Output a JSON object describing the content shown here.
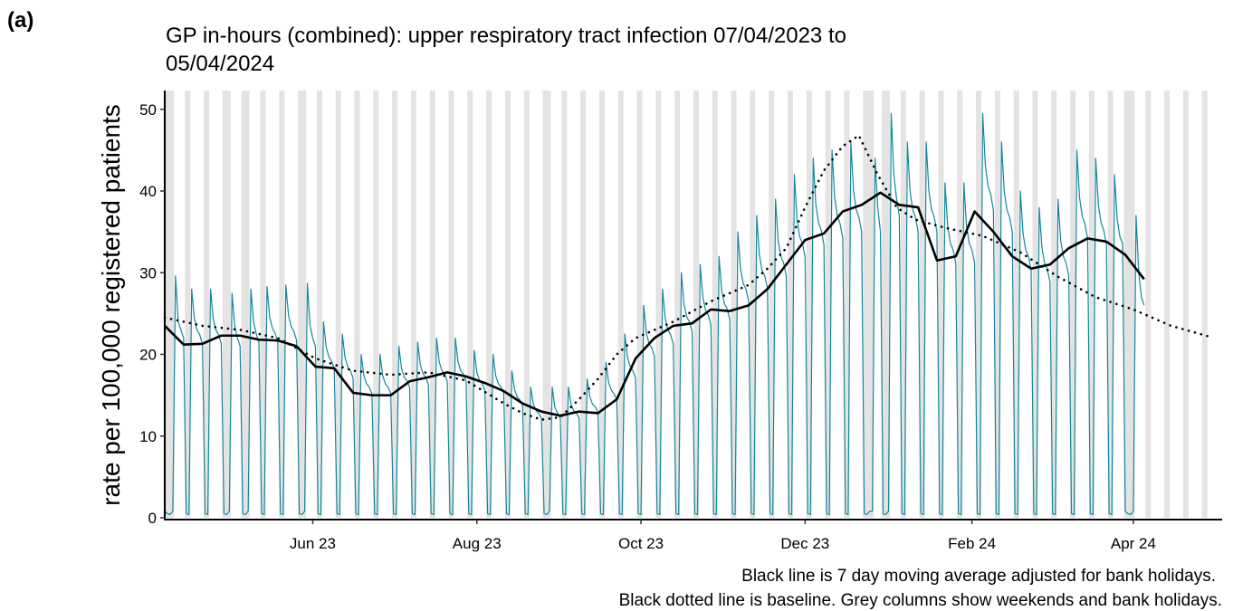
{
  "chart_data": {
    "type": "line",
    "panel_label": "(a)",
    "title": [
      "GP in-hours (combined): upper respiratory tract infection 07/04/2023 to",
      "05/04/2024"
    ],
    "ylabel": "rate per 100,000 registered patients",
    "notes": [
      "Black line is 7 day moving average adjusted for bank holidays.",
      "Black dotted line is baseline. Grey columns show weekends and bank holidays."
    ],
    "xlim": [
      0,
      393
    ],
    "ylim": [
      0,
      52.3
    ],
    "xticks": [
      {
        "value": 55,
        "label": "Jun 23"
      },
      {
        "value": 116,
        "label": "Aug 23"
      },
      {
        "value": 177,
        "label": "Oct 23"
      },
      {
        "value": 238,
        "label": "Dec 23"
      },
      {
        "value": 300,
        "label": "Feb 24"
      },
      {
        "value": 360,
        "label": "Apr 24"
      }
    ],
    "yticks": [
      0,
      10,
      20,
      30,
      40,
      50
    ],
    "shaded_color": "#e3e3e3",
    "shaded": [
      0,
      1,
      2,
      3,
      8,
      9,
      15,
      16,
      22,
      23,
      24,
      29,
      30,
      31,
      36,
      37,
      43,
      44,
      50,
      51,
      52,
      57,
      58,
      64,
      65,
      71,
      72,
      78,
      79,
      85,
      86,
      92,
      93,
      99,
      100,
      106,
      107,
      113,
      114,
      120,
      121,
      127,
      128,
      134,
      135,
      141,
      142,
      143,
      148,
      149,
      155,
      156,
      162,
      163,
      169,
      170,
      176,
      177,
      183,
      184,
      190,
      191,
      197,
      198,
      204,
      205,
      211,
      212,
      218,
      219,
      225,
      226,
      232,
      233,
      239,
      240,
      246,
      247,
      253,
      254,
      260,
      261,
      262,
      263,
      267,
      268,
      269,
      274,
      275,
      281,
      282,
      288,
      289,
      295,
      296,
      302,
      303,
      309,
      310,
      316,
      317,
      323,
      324,
      330,
      331,
      337,
      338,
      344,
      345,
      351,
      352,
      357,
      358,
      359,
      360,
      365,
      366,
      372,
      373,
      379,
      380,
      386,
      387
    ],
    "series": [
      {
        "color": "#13869b",
        "style": "solid",
        "width": 1.2,
        "x": [
          0,
          1,
          2,
          3,
          4,
          5,
          6,
          7,
          8,
          9,
          10,
          11,
          12,
          13,
          14,
          15,
          16,
          17,
          18,
          19,
          20,
          21,
          22,
          23,
          24,
          25,
          26,
          27,
          28,
          29,
          30,
          31,
          32,
          33,
          34,
          35,
          36,
          37,
          38,
          39,
          40,
          41,
          42,
          43,
          44,
          45,
          46,
          47,
          48,
          49,
          50,
          51,
          52,
          53,
          54,
          55,
          56,
          57,
          58,
          59,
          60,
          61,
          62,
          63,
          64,
          65,
          66,
          67,
          68,
          69,
          70,
          71,
          72,
          73,
          74,
          75,
          76,
          77,
          78,
          79,
          80,
          81,
          82,
          83,
          84,
          85,
          86,
          87,
          88,
          89,
          90,
          91,
          92,
          93,
          94,
          95,
          96,
          97,
          98,
          99,
          100,
          101,
          102,
          103,
          104,
          105,
          106,
          107,
          108,
          109,
          110,
          111,
          112,
          113,
          114,
          115,
          116,
          117,
          118,
          119,
          120,
          121,
          122,
          123,
          124,
          125,
          126,
          127,
          128,
          129,
          130,
          131,
          132,
          133,
          134,
          135,
          136,
          137,
          138,
          139,
          140,
          141,
          142,
          143,
          144,
          145,
          146,
          147,
          148,
          149,
          150,
          151,
          152,
          153,
          154,
          155,
          156,
          157,
          158,
          159,
          160,
          161,
          162,
          163,
          164,
          165,
          166,
          167,
          168,
          169,
          170,
          171,
          172,
          173,
          174,
          175,
          176,
          177,
          178,
          179,
          180,
          181,
          182,
          183,
          184,
          185,
          186,
          187,
          188,
          189,
          190,
          191,
          192,
          193,
          194,
          195,
          196,
          197,
          198,
          199,
          200,
          201,
          202,
          203,
          204,
          205,
          206,
          207,
          208,
          209,
          210,
          211,
          212,
          213,
          214,
          215,
          216,
          217,
          218,
          219,
          220,
          221,
          222,
          223,
          224,
          225,
          226,
          227,
          228,
          229,
          230,
          231,
          232,
          233,
          234,
          235,
          236,
          237,
          238,
          239,
          240,
          241,
          242,
          243,
          244,
          245,
          246,
          247,
          248,
          249,
          250,
          251,
          252,
          253,
          254,
          255,
          256,
          257,
          258,
          259,
          260,
          261,
          262,
          263,
          264,
          265,
          266,
          267,
          268,
          269,
          270,
          271,
          272,
          273,
          274,
          275,
          276,
          277,
          278,
          279,
          280,
          281,
          282,
          283,
          284,
          285,
          286,
          287,
          288,
          289,
          290,
          291,
          292,
          293,
          294,
          295,
          296,
          297,
          298,
          299,
          300,
          301,
          302,
          303,
          304,
          305,
          306,
          307,
          308,
          309,
          310,
          311,
          312,
          313,
          314,
          315,
          316,
          317,
          318,
          319,
          320,
          321,
          322,
          323,
          324,
          325,
          326,
          327,
          328,
          329,
          330,
          331,
          332,
          333,
          334,
          335,
          336,
          337,
          338,
          339,
          340,
          341,
          342,
          343,
          344,
          345,
          346,
          347,
          348,
          349,
          350,
          351,
          352,
          353,
          354,
          355,
          356,
          357,
          358,
          359,
          360,
          361,
          362,
          363,
          364
        ],
        "values": [
          0.8,
          0.5,
          0.4,
          0.8,
          29.6,
          24,
          23,
          22,
          0.5,
          0.4,
          28,
          24.4,
          23,
          22.4,
          21.3,
          0.5,
          0.4,
          28,
          24.4,
          23,
          22.4,
          21.3,
          0.5,
          0.4,
          0.8,
          27.5,
          23.5,
          22,
          21,
          0.5,
          0.4,
          0.8,
          28,
          24,
          22.5,
          21.5,
          0.5,
          0.4,
          28.3,
          24.6,
          23.2,
          22.6,
          21.5,
          0.5,
          0.4,
          28.5,
          24.8,
          23.4,
          22.8,
          21.7,
          0.5,
          0.4,
          0.8,
          28.7,
          23.5,
          22,
          21,
          0.5,
          0.4,
          24,
          20.9,
          19.7,
          19.2,
          18.2,
          0.5,
          0.4,
          22.5,
          19.6,
          18.5,
          18,
          17.1,
          0.5,
          0.4,
          20,
          17.4,
          16.4,
          16,
          15.2,
          0.5,
          0.4,
          20,
          17.4,
          16.4,
          16,
          15.2,
          0.5,
          0.4,
          21,
          18.3,
          17.2,
          16.8,
          16,
          0.5,
          0.4,
          21.5,
          18.7,
          17.6,
          17.2,
          16.3,
          0.5,
          0.4,
          22,
          19.1,
          18,
          17.6,
          16.7,
          0.5,
          0.4,
          22,
          19.1,
          18,
          17.6,
          16.7,
          0.5,
          0.4,
          20.5,
          17.8,
          16.8,
          16.4,
          15.6,
          0.5,
          0.4,
          20,
          17.4,
          16.4,
          16,
          15.2,
          0.5,
          0.4,
          18,
          15.7,
          14.8,
          14.4,
          13.7,
          0.5,
          0.4,
          16,
          13.9,
          13.1,
          12.8,
          12.2,
          0.5,
          0.4,
          0.8,
          16,
          13.5,
          12.8,
          12.2,
          0.5,
          0.4,
          16,
          13.9,
          13.1,
          12.8,
          12.2,
          0.5,
          0.4,
          17,
          14.8,
          13.9,
          13.6,
          12.9,
          0.5,
          0.4,
          19,
          16.5,
          15.6,
          15.2,
          14.4,
          0.5,
          0.4,
          22.5,
          19.6,
          18.5,
          18,
          17.1,
          0.5,
          0.4,
          26,
          22.6,
          21.3,
          20.8,
          19.8,
          0.5,
          0.4,
          28,
          24.4,
          23,
          22.4,
          21.3,
          0.5,
          0.4,
          30,
          26.1,
          24.6,
          24,
          22.8,
          0.5,
          0.4,
          31,
          27,
          25.4,
          24.8,
          23.6,
          0.5,
          0.4,
          32,
          27.8,
          26.2,
          25.6,
          24.3,
          0.5,
          0.4,
          35,
          30.5,
          28.7,
          28,
          26.6,
          0.5,
          0.4,
          37,
          32.2,
          30.3,
          29.6,
          28.1,
          0.5,
          0.4,
          39,
          33.9,
          32,
          31.2,
          29.6,
          0.5,
          0.4,
          42,
          36.5,
          34.4,
          33.6,
          31.9,
          0.5,
          0.4,
          44,
          38.3,
          36.1,
          35.2,
          33.4,
          0.5,
          0.4,
          45,
          39.2,
          36.9,
          36,
          34.2,
          0.5,
          0.4,
          46,
          40,
          37.7,
          36.8,
          35,
          0.5,
          0.4,
          0.8,
          0.8,
          44,
          38,
          35,
          0.5,
          0.4,
          0.8,
          49.5,
          42,
          39,
          37,
          0.5,
          0.4,
          46,
          40,
          37.7,
          36.8,
          35,
          0.5,
          0.4,
          46,
          40,
          37.7,
          36.8,
          35,
          0.5,
          0.4,
          41,
          35.7,
          33.6,
          32.8,
          31.2,
          0.5,
          0.4,
          41,
          35.7,
          33.6,
          32.8,
          31.2,
          0.5,
          0.4,
          49.5,
          43.1,
          40.6,
          39.6,
          37.6,
          0.5,
          0.4,
          46,
          40,
          37.7,
          36.8,
          35,
          0.5,
          0.4,
          40,
          34.8,
          32.8,
          32,
          30.4,
          0.5,
          0.4,
          38,
          33.1,
          31.2,
          30.4,
          28.9,
          0.5,
          0.4,
          39,
          33.9,
          32,
          31.2,
          29.6,
          0.5,
          0.4,
          45,
          39.2,
          36.9,
          36,
          34.2,
          0.5,
          0.4,
          44,
          38.3,
          36.1,
          35.2,
          33.4,
          0.5,
          0.4,
          42,
          36.5,
          34.4,
          33.6,
          0.8,
          0.5,
          0.4,
          0.8,
          37,
          30,
          27,
          26
        ]
      },
      {
        "color": "#000000",
        "style": "solid",
        "width": 2.6,
        "x": [
          0,
          7,
          14,
          21,
          28,
          35,
          42,
          49,
          56,
          63,
          70,
          77,
          84,
          91,
          98,
          105,
          112,
          119,
          126,
          133,
          140,
          147,
          154,
          161,
          168,
          175,
          182,
          189,
          196,
          203,
          210,
          217,
          224,
          231,
          238,
          245,
          252,
          259,
          266,
          273,
          280,
          287,
          294,
          301,
          308,
          315,
          322,
          329,
          336,
          343,
          350,
          357,
          364
        ],
        "values": [
          23.5,
          21.2,
          21.3,
          22.3,
          22.3,
          21.8,
          21.7,
          21,
          18.5,
          18.3,
          15.3,
          15,
          15,
          16.7,
          17.2,
          17.8,
          17.3,
          16.5,
          15.5,
          14,
          13,
          12.5,
          13,
          12.8,
          14.5,
          19.5,
          22,
          23.5,
          23.8,
          25.5,
          25.3,
          26,
          28,
          31,
          34,
          34.8,
          37.5,
          38.3,
          39.8,
          38.3,
          38,
          31.5,
          32,
          37.5,
          35,
          32,
          30.5,
          31,
          33,
          34.2,
          33.8,
          32.2,
          29.2
        ]
      },
      {
        "color": "#000000",
        "style": "dotted",
        "width": 2.6,
        "x": [
          0,
          14,
          28,
          42,
          56,
          70,
          84,
          98,
          112,
          126,
          133,
          140,
          147,
          154,
          161,
          168,
          175,
          189,
          203,
          217,
          224,
          231,
          238,
          245,
          252,
          258,
          265,
          272,
          279,
          290,
          304,
          318,
          332,
          346,
          360,
          374,
          388
        ],
        "values": [
          24.5,
          23.5,
          23,
          22,
          19.5,
          18,
          17.5,
          17.8,
          16.8,
          14,
          12.8,
          12,
          12.3,
          14.5,
          17,
          20,
          22,
          24,
          26.5,
          28.5,
          30.5,
          33,
          38,
          42.5,
          45.5,
          46.8,
          42,
          38,
          36.5,
          35.5,
          34.5,
          32.5,
          29.5,
          27,
          25.5,
          23.5,
          22.2
        ]
      }
    ]
  }
}
